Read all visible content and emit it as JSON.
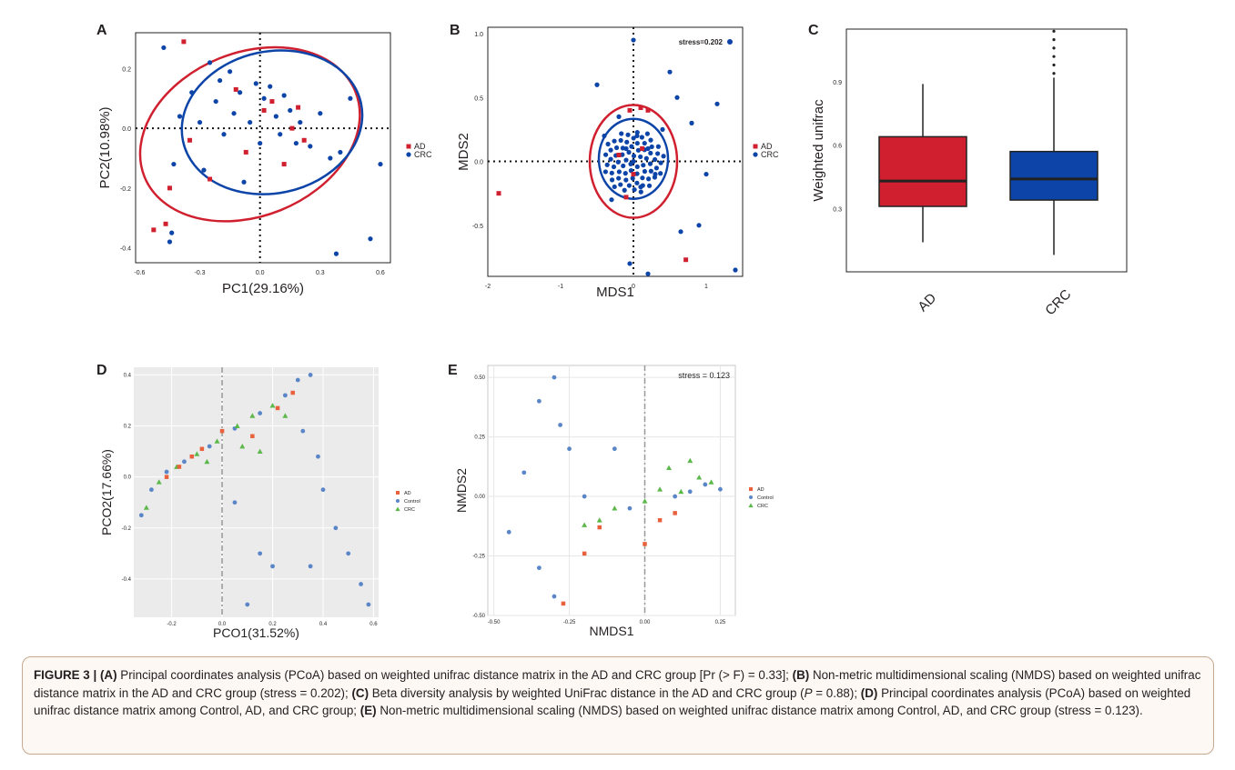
{
  "panels": {
    "A": {
      "label": "A",
      "xlabel": "PC1(29.16%)",
      "ylabel": "PC2(10.98%)",
      "xticks": [
        "-0.6",
        "-0.3",
        "0.0",
        "0.3",
        "0.6"
      ],
      "yticks": [
        "0.2",
        "0.0",
        "-0.2",
        "-0.4"
      ],
      "legend": [
        "AD",
        "CRC"
      ]
    },
    "B": {
      "label": "B",
      "xlabel": "MDS1",
      "ylabel": "MDS2",
      "xticks": [
        "-2",
        "-1",
        "0",
        "1"
      ],
      "yticks": [
        "1.0",
        "0.5",
        "0.0",
        "-0.5"
      ],
      "legend": [
        "AD",
        "CRC"
      ],
      "stress": "stress=0.202"
    },
    "C": {
      "label": "C",
      "ylabel": "Weighted unifrac",
      "yticks": [
        "0.9",
        "0.6",
        "0.3"
      ],
      "categories": [
        "AD",
        "CRC"
      ]
    },
    "D": {
      "label": "D",
      "xlabel": "PCO1(31.52%)",
      "ylabel": "PCO2(17.66%)",
      "xticks": [
        "-0.2",
        "0.0",
        "0.2",
        "0.4",
        "0.6"
      ],
      "yticks": [
        "0.4",
        "0.2",
        "0.0",
        "-0.2",
        "-0.4"
      ],
      "legend": [
        "AD",
        "Control",
        "CRC"
      ]
    },
    "E": {
      "label": "E",
      "xlabel": "NMDS1",
      "ylabel": "NMDS2",
      "xticks": [
        "-0.50",
        "-0.25",
        "0.00",
        "0.25"
      ],
      "yticks": [
        "0.50",
        "0.25",
        "0.00",
        "-0.25",
        "-0.50"
      ],
      "legend": [
        "AD",
        "Control",
        "CRC"
      ],
      "stress": "stress = 0.123"
    }
  },
  "colors": {
    "ad_red": "#d0202f",
    "crc_blue": "#0c44a8",
    "d_ad": "#e8613c",
    "d_control": "#5a86c8",
    "d_crc": "#5cb84a"
  },
  "chart_data": [
    {
      "type": "scatter",
      "xlabel": "PC1(29.16%)",
      "ylabel": "PC2(10.98%)",
      "xlim": [
        -0.62,
        0.65
      ],
      "ylim": [
        -0.45,
        0.32
      ],
      "series": [
        {
          "name": "AD",
          "points": [
            [
              -0.38,
              0.29
            ],
            [
              -0.53,
              -0.34
            ],
            [
              -0.45,
              -0.2
            ],
            [
              -0.35,
              -0.04
            ],
            [
              -0.25,
              -0.17
            ],
            [
              -0.12,
              0.13
            ],
            [
              -0.07,
              -0.08
            ],
            [
              0.02,
              0.06
            ],
            [
              0.06,
              0.09
            ],
            [
              0.12,
              -0.12
            ],
            [
              0.16,
              0.0
            ],
            [
              0.19,
              0.07
            ],
            [
              0.22,
              -0.04
            ],
            [
              -0.47,
              -0.32
            ]
          ]
        },
        {
          "name": "CRC",
          "points": [
            [
              -0.45,
              -0.38
            ],
            [
              -0.44,
              -0.35
            ],
            [
              -0.43,
              -0.12
            ],
            [
              -0.4,
              0.04
            ],
            [
              -0.34,
              0.12
            ],
            [
              -0.3,
              0.02
            ],
            [
              -0.28,
              -0.14
            ],
            [
              -0.25,
              0.22
            ],
            [
              -0.22,
              0.09
            ],
            [
              -0.2,
              0.16
            ],
            [
              -0.18,
              -0.02
            ],
            [
              -0.15,
              0.19
            ],
            [
              -0.13,
              0.05
            ],
            [
              -0.1,
              0.12
            ],
            [
              -0.08,
              -0.18
            ],
            [
              -0.05,
              0.02
            ],
            [
              -0.02,
              0.15
            ],
            [
              0.0,
              -0.05
            ],
            [
              0.02,
              0.1
            ],
            [
              0.05,
              0.14
            ],
            [
              0.08,
              0.04
            ],
            [
              0.1,
              -0.02
            ],
            [
              0.12,
              0.11
            ],
            [
              0.15,
              0.06
            ],
            [
              0.18,
              -0.05
            ],
            [
              0.2,
              0.02
            ],
            [
              0.25,
              -0.06
            ],
            [
              0.3,
              0.05
            ],
            [
              0.35,
              -0.1
            ],
            [
              0.4,
              -0.08
            ],
            [
              0.45,
              0.1
            ],
            [
              0.55,
              -0.37
            ],
            [
              0.6,
              -0.12
            ],
            [
              0.38,
              -0.42
            ],
            [
              -0.48,
              0.27
            ]
          ]
        }
      ]
    },
    {
      "type": "scatter",
      "xlabel": "MDS1",
      "ylabel": "MDS2",
      "xlim": [
        -2.0,
        1.5
      ],
      "ylim": [
        -0.9,
        1.05
      ],
      "series": [
        {
          "name": "AD",
          "points": [
            [
              -1.85,
              -0.25
            ],
            [
              -0.05,
              0.4
            ],
            [
              0.1,
              0.42
            ],
            [
              0.2,
              0.4
            ],
            [
              0.12,
              0.1
            ],
            [
              0.0,
              -0.1
            ],
            [
              -0.1,
              -0.28
            ],
            [
              0.72,
              -0.77
            ],
            [
              -0.2,
              0.05
            ]
          ]
        },
        {
          "name": "CRC",
          "points": [
            [
              -0.5,
              0.6
            ],
            [
              -0.4,
              0.2
            ],
            [
              -0.3,
              -0.3
            ],
            [
              -0.2,
              0.35
            ],
            [
              -0.1,
              0.1
            ],
            [
              0.0,
              0.0
            ],
            [
              0.05,
              0.2
            ],
            [
              0.1,
              -0.2
            ],
            [
              0.2,
              0.1
            ],
            [
              0.3,
              -0.1
            ],
            [
              0.4,
              0.25
            ],
            [
              0.5,
              0.7
            ],
            [
              0.6,
              0.5
            ],
            [
              0.8,
              0.3
            ],
            [
              1.0,
              -0.1
            ],
            [
              1.15,
              0.45
            ],
            [
              1.4,
              -0.85
            ],
            [
              0.0,
              0.95
            ],
            [
              -0.05,
              -0.8
            ],
            [
              0.2,
              -0.88
            ],
            [
              0.65,
              -0.55
            ],
            [
              0.9,
              -0.5
            ]
          ]
        }
      ]
    },
    {
      "type": "box",
      "ylabel": "Weighted unifrac",
      "categories": [
        "AD",
        "CRC"
      ],
      "ylim": [
        0.0,
        1.15
      ],
      "boxes": [
        {
          "name": "AD",
          "whisker_low": 0.14,
          "q1": 0.31,
          "median": 0.43,
          "q3": 0.64,
          "whisker_high": 0.89
        },
        {
          "name": "CRC",
          "whisker_low": 0.08,
          "q1": 0.34,
          "median": 0.44,
          "q3": 0.57,
          "whisker_high": 0.92,
          "outliers": [
            0.94,
            0.98,
            1.02,
            1.06,
            1.1,
            1.14
          ]
        }
      ]
    },
    {
      "type": "scatter",
      "xlabel": "PCO1(31.52%)",
      "ylabel": "PCO2(17.66%)",
      "xlim": [
        -0.35,
        0.62
      ],
      "ylim": [
        -0.55,
        0.43
      ],
      "series": [
        {
          "name": "AD",
          "points": [
            [
              -0.22,
              0.0
            ],
            [
              -0.17,
              0.04
            ],
            [
              -0.12,
              0.08
            ],
            [
              -0.08,
              0.11
            ],
            [
              0.0,
              0.18
            ],
            [
              0.12,
              0.16
            ],
            [
              0.22,
              0.27
            ],
            [
              0.28,
              0.33
            ]
          ]
        },
        {
          "name": "Control",
          "points": [
            [
              -0.32,
              -0.15
            ],
            [
              -0.28,
              -0.05
            ],
            [
              -0.22,
              0.02
            ],
            [
              -0.15,
              0.06
            ],
            [
              -0.05,
              0.12
            ],
            [
              0.05,
              0.19
            ],
            [
              0.15,
              0.25
            ],
            [
              0.25,
              0.32
            ],
            [
              0.3,
              0.38
            ],
            [
              0.35,
              0.4
            ],
            [
              0.32,
              0.18
            ],
            [
              0.38,
              0.08
            ],
            [
              0.4,
              -0.05
            ],
            [
              0.45,
              -0.2
            ],
            [
              0.5,
              -0.3
            ],
            [
              0.55,
              -0.42
            ],
            [
              0.58,
              -0.5
            ],
            [
              0.15,
              -0.3
            ],
            [
              0.05,
              -0.1
            ],
            [
              0.2,
              -0.35
            ],
            [
              0.35,
              -0.35
            ],
            [
              0.1,
              -0.5
            ]
          ]
        },
        {
          "name": "CRC",
          "points": [
            [
              -0.3,
              -0.12
            ],
            [
              -0.25,
              -0.02
            ],
            [
              -0.18,
              0.04
            ],
            [
              -0.1,
              0.09
            ],
            [
              -0.02,
              0.14
            ],
            [
              0.06,
              0.2
            ],
            [
              0.12,
              0.24
            ],
            [
              0.2,
              0.28
            ],
            [
              0.25,
              0.24
            ],
            [
              0.15,
              0.1
            ],
            [
              0.08,
              0.12
            ],
            [
              -0.06,
              0.06
            ]
          ]
        }
      ]
    },
    {
      "type": "scatter",
      "xlabel": "NMDS1",
      "ylabel": "NMDS2",
      "xlim": [
        -0.52,
        0.3
      ],
      "ylim": [
        -0.5,
        0.55
      ],
      "series": [
        {
          "name": "AD",
          "points": [
            [
              -0.27,
              -0.45
            ],
            [
              -0.2,
              -0.24
            ],
            [
              0.0,
              -0.2
            ],
            [
              0.05,
              -0.1
            ],
            [
              0.1,
              -0.07
            ],
            [
              -0.15,
              -0.13
            ]
          ]
        },
        {
          "name": "Control",
          "points": [
            [
              -0.45,
              -0.15
            ],
            [
              -0.4,
              0.1
            ],
            [
              -0.35,
              0.4
            ],
            [
              -0.3,
              0.5
            ],
            [
              -0.28,
              0.3
            ],
            [
              -0.25,
              0.2
            ],
            [
              -0.2,
              0.0
            ],
            [
              -0.3,
              -0.42
            ],
            [
              -0.35,
              -0.3
            ],
            [
              0.1,
              0.0
            ],
            [
              0.15,
              0.02
            ],
            [
              0.2,
              0.05
            ],
            [
              0.25,
              0.03
            ],
            [
              -0.1,
              0.2
            ],
            [
              -0.05,
              -0.05
            ]
          ]
        },
        {
          "name": "CRC",
          "points": [
            [
              -0.2,
              -0.12
            ],
            [
              -0.1,
              -0.05
            ],
            [
              0.0,
              -0.02
            ],
            [
              0.05,
              0.03
            ],
            [
              0.12,
              0.02
            ],
            [
              0.18,
              0.08
            ],
            [
              0.22,
              0.06
            ],
            [
              -0.15,
              -0.1
            ],
            [
              0.08,
              0.12
            ],
            [
              0.15,
              0.15
            ]
          ]
        }
      ]
    }
  ],
  "caption": {
    "figure": "FIGURE 3 |",
    "a_tag": "(A)",
    "a_text": " Principal coordinates analysis (PCoA) based on weighted unifrac distance matrix in the AD and CRC group [Pr (> F) = 0.33]; ",
    "b_tag": "(B)",
    "b_text": " Non-metric multidimensional scaling (NMDS) based on weighted unifrac distance matrix in the AD and CRC group (stress = 0.202); ",
    "c_tag": "(C)",
    "c_text": " Beta diversity analysis by weighted UniFrac distance in the AD and CRC group (",
    "c_p": "P",
    "c_end": " = 0.88); ",
    "d_tag": "(D)",
    "d_text": " Principal coordinates analysis (PCoA) based on weighted unifrac distance matrix among Control, AD, and CRC group; ",
    "e_tag": "(E)",
    "e_text": " Non-metric multidimensional scaling (NMDS) based on weighted unifrac distance matrix among Control, AD, and CRC group (stress = 0.123)."
  }
}
